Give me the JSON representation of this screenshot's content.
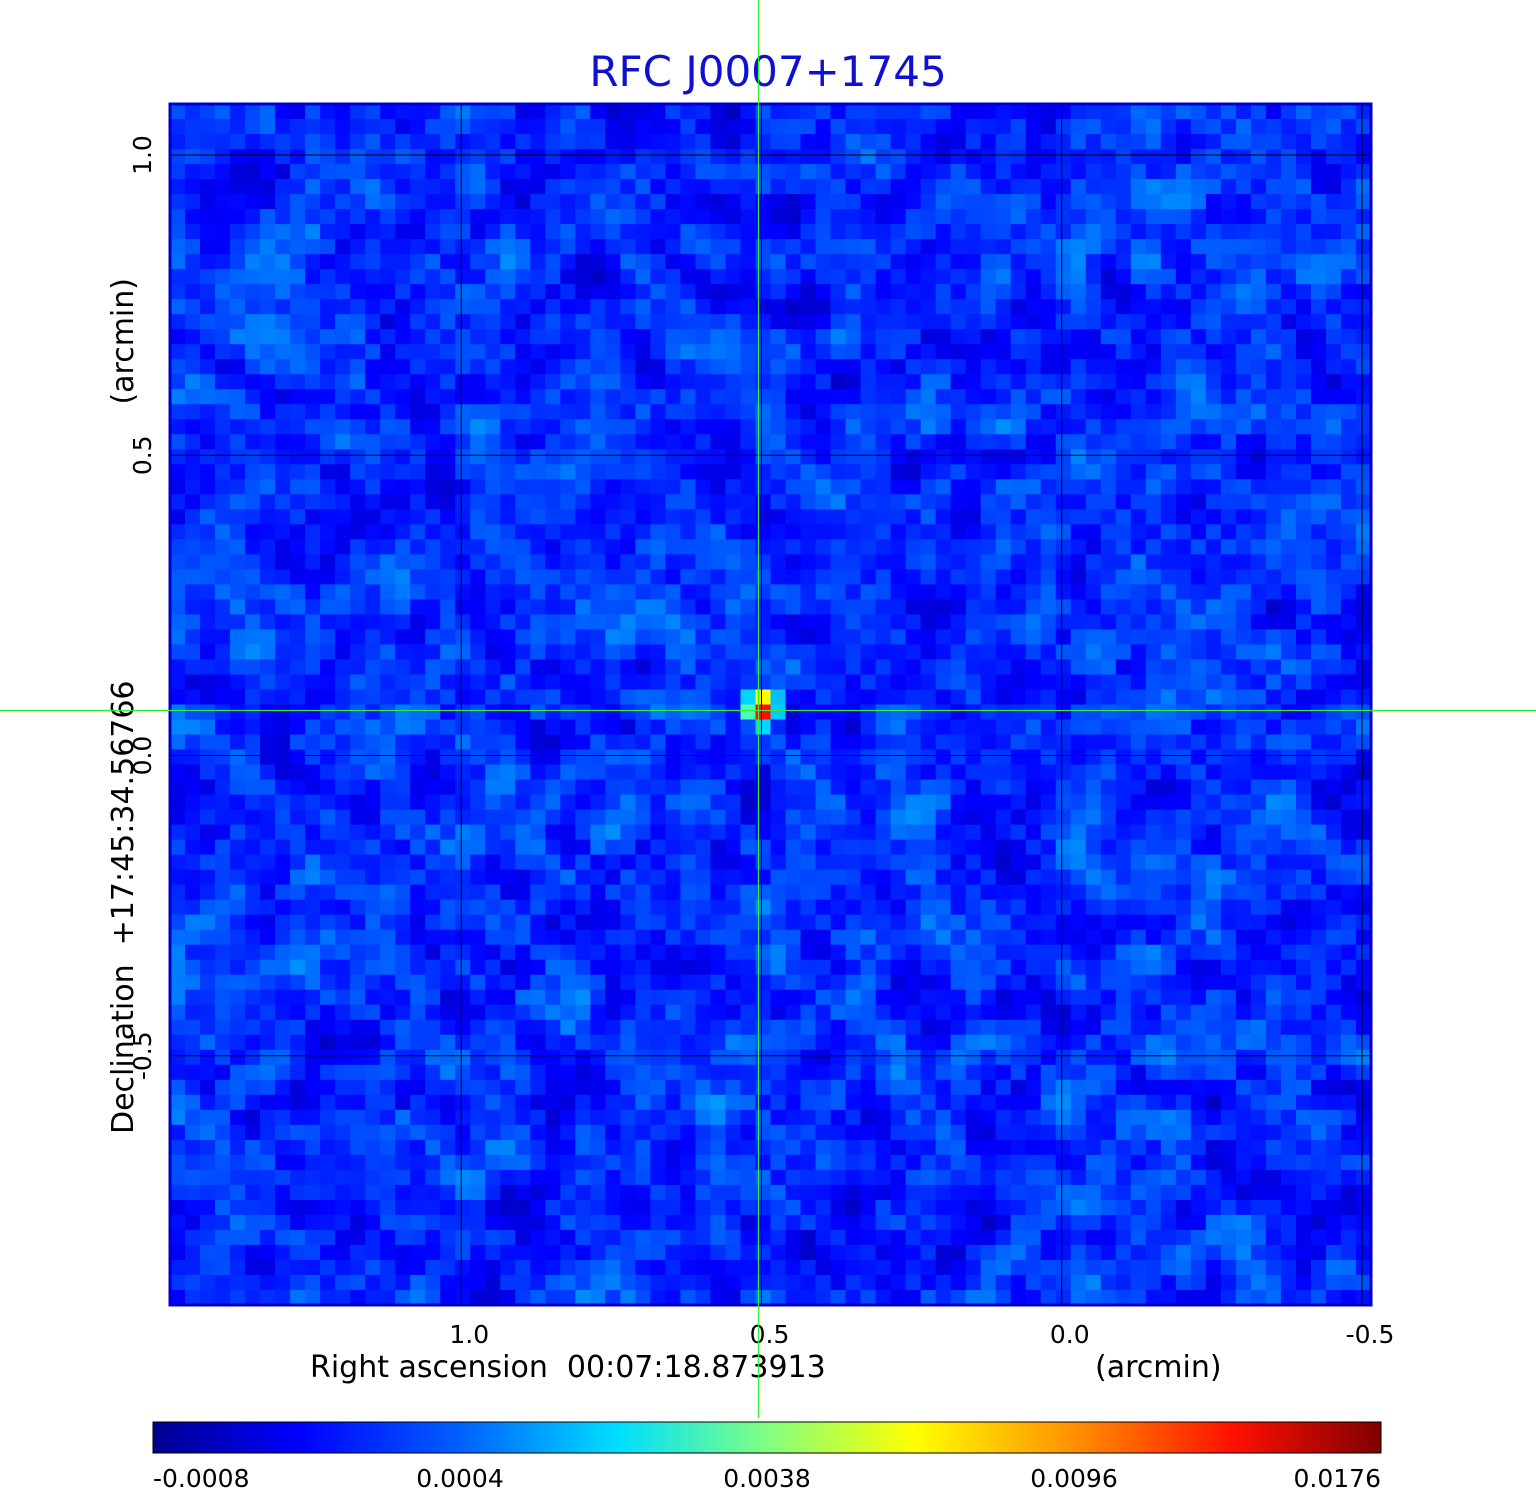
{
  "chart_data": {
    "type": "heatmap",
    "title": "RFC J0007+1745",
    "xlabel": "Right ascension  00:07:18.873913",
    "xunit": "(arcmin)",
    "ylabel": "Declination  +17:45:34.56766",
    "yunit": "(arcmin)",
    "x_ticks": [
      1.0,
      0.5,
      0.0,
      -0.5
    ],
    "x_tick_labels": [
      "1.0",
      "0.5",
      "0.0",
      "-0.5"
    ],
    "y_ticks": [
      1.0,
      0.5,
      0.0,
      -0.5
    ],
    "y_tick_labels": [
      "1.0",
      "0.5",
      "0.0",
      "-0.5"
    ],
    "xlim": [
      1.485,
      -0.515
    ],
    "ylim": [
      -0.915,
      1.085
    ],
    "x_reversed": true,
    "grid": true,
    "crosshair": {
      "x": 0.505,
      "y": 0.075
    },
    "source_peak": {
      "x": 0.5,
      "y": 0.08,
      "value": 0.0176
    },
    "background_level": 0.0004,
    "colormap": "jet",
    "colorbar": {
      "ticks": [
        -0.0008,
        0.0004,
        0.0038,
        0.0096,
        0.0176
      ],
      "tick_labels": [
        "-0.0008",
        "0.0004",
        "0.0038",
        "0.0096",
        "0.0176"
      ],
      "placement": "bottom"
    },
    "colors": {
      "title": "#1010d0",
      "frame": "#0000cc",
      "grid": "#000000",
      "crosshair": "#33ee33"
    }
  }
}
